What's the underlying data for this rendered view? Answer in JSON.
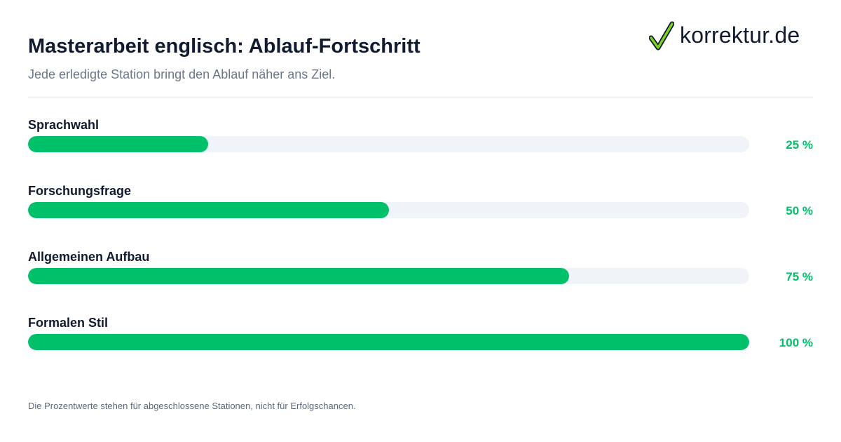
{
  "header": {
    "title": "Masterarbeit englisch: Ablauf-Fortschritt",
    "subtitle": "Jede erledigte Station bringt den Ablauf näher ans Ziel."
  },
  "logo": {
    "text": "korrektur.de",
    "icon": "checkmark-icon",
    "check_color": "#7ed321"
  },
  "chart_data": {
    "type": "bar",
    "orientation": "horizontal",
    "categories": [
      "Sprachwahl",
      "Forschungsfrage",
      "Allgemeinen Aufbau",
      "Formalen Stil"
    ],
    "values": [
      25,
      50,
      75,
      100
    ],
    "value_labels": [
      "25 %",
      "50 %",
      "75 %",
      "100 %"
    ],
    "xlim": [
      0,
      100
    ],
    "title": "Masterarbeit englisch: Ablauf-Fortschritt",
    "subtitle": "Jede erledigte Station bringt den Ablauf näher ans Ziel.",
    "xlabel": "",
    "ylabel": "",
    "grid": false,
    "legend": "none",
    "colors": {
      "fill": "#00c16a",
      "track": "#f0f3f8",
      "value_text": "#00c16a"
    }
  },
  "footer": {
    "note": "Die Prozentwerte stehen für abgeschlossene Stationen, nicht für Erfolgschancen."
  }
}
